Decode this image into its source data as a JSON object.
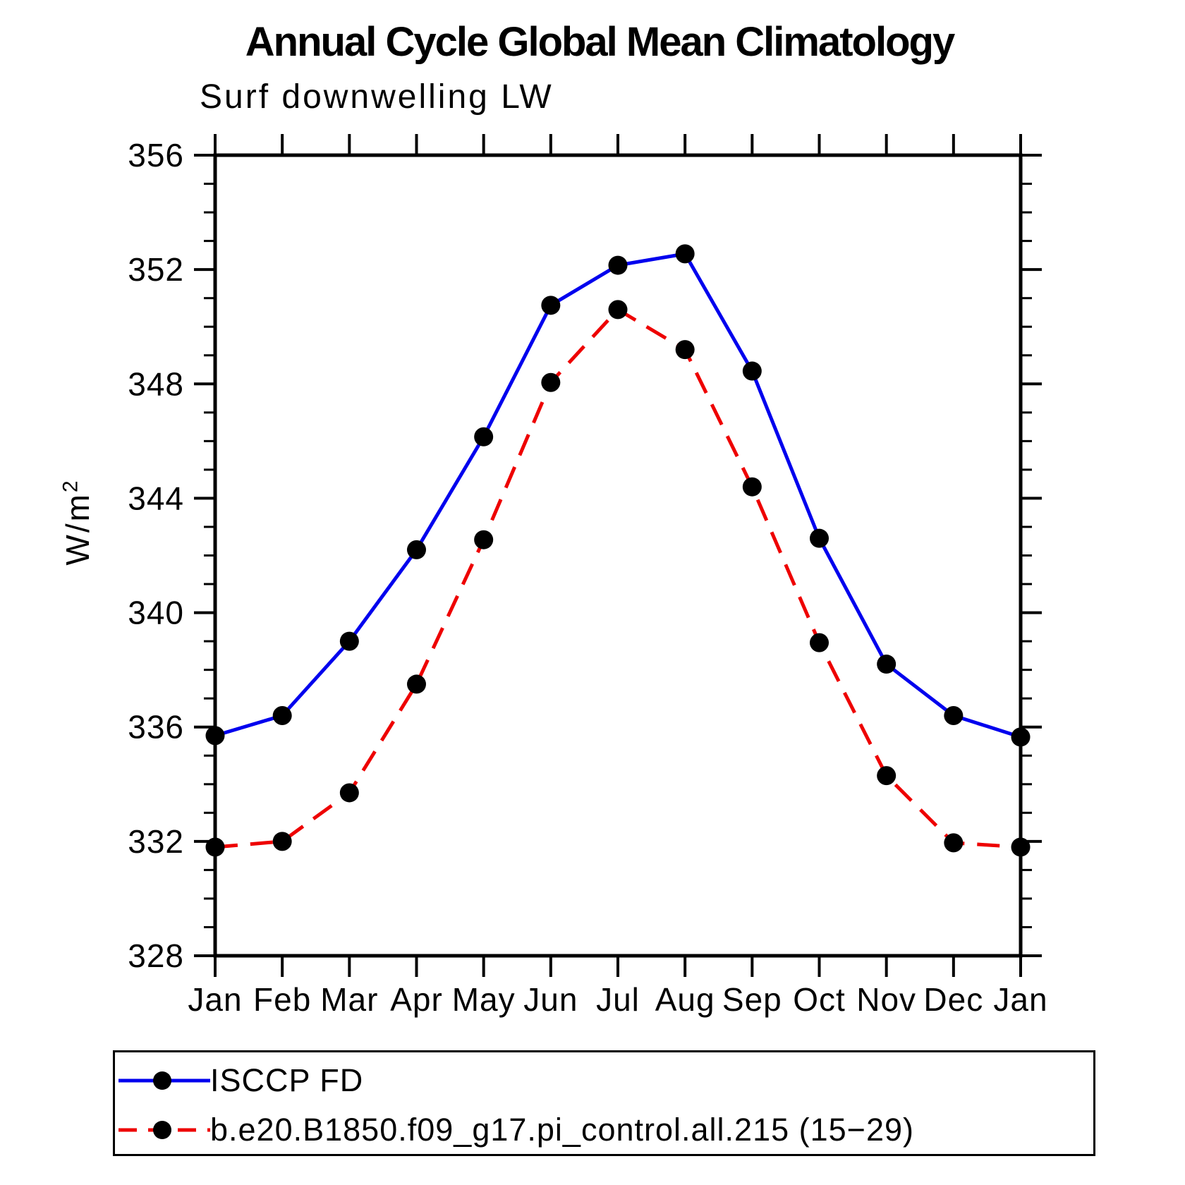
{
  "chart_data": {
    "type": "line",
    "title": "Annual Cycle Global Mean Climatology",
    "subtitle": "Surf downwelling LW",
    "ylabel": "W/m²",
    "ylabel_base": "W/m",
    "ylabel_exp": "2",
    "categories": [
      "Jan",
      "Feb",
      "Mar",
      "Apr",
      "May",
      "Jun",
      "Jul",
      "Aug",
      "Sep",
      "Oct",
      "Nov",
      "Dec",
      "Jan"
    ],
    "ylim": [
      328,
      356
    ],
    "ytick_major": 4,
    "ytick_minor": 1,
    "ytick_labels": [
      "328",
      "332",
      "336",
      "340",
      "344",
      "348",
      "352",
      "356"
    ],
    "grid": false,
    "legend_position": "bottom",
    "axis_color": "#000000",
    "marker_color": "#000000",
    "series": [
      {
        "name": "ISCCP FD",
        "color": "#0000ee",
        "style": "solid",
        "marker": "circle",
        "marker_color": "#000000",
        "values": [
          335.7,
          336.4,
          339.0,
          342.2,
          346.15,
          350.75,
          352.15,
          352.55,
          348.45,
          342.6,
          338.2,
          336.4,
          335.65
        ]
      },
      {
        "name": "b.e20.B1850.f09_g17.pi_control.all.215 (15−29)",
        "color": "#ee0000",
        "style": "dashed",
        "marker": "circle",
        "marker_color": "#000000",
        "values": [
          331.8,
          332.0,
          333.7,
          337.5,
          342.55,
          348.05,
          350.6,
          349.2,
          344.4,
          338.95,
          334.3,
          331.95,
          331.8
        ]
      }
    ]
  }
}
